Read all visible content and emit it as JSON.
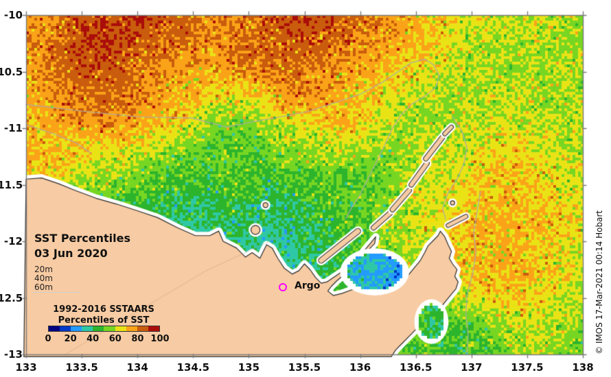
{
  "map": {
    "title_line1": "SST Percentiles",
    "title_line2": "03 Jun 2020",
    "argo_label": "Argo",
    "argo_marker_color": "#FF00FF",
    "copyright": "© IMOS 17-Mar-2021 00:14 Hobart",
    "land_color": "#F7CBA3",
    "coast_outline_color": "#2B2B2B",
    "coast_halo_color": "#FFFFFF",
    "contour_color": "#ABABAB",
    "axis_color": "#7A7A7A",
    "background": "#FFFFFF"
  },
  "legend": {
    "depth_items": [
      "20m",
      "40m",
      "60m"
    ],
    "title_line1": "1992-2016 SSTAARS",
    "title_line2": "Percentiles of SST",
    "ticks": [
      "0",
      "20",
      "40",
      "60",
      "80",
      "100"
    ],
    "palette": [
      "#000082",
      "#0038C8",
      "#239BFF",
      "#2EC8A6",
      "#2DB42D",
      "#77D622",
      "#E9E316",
      "#FBA318",
      "#C95C0D",
      "#AB0D0A"
    ]
  },
  "axes": {
    "x_ticks": [
      "133",
      "133.5",
      "134",
      "134.5",
      "135",
      "135.5",
      "136",
      "136.5",
      "137",
      "137.5",
      "138"
    ],
    "y_ticks": [
      "-10",
      "-10.5",
      "-11",
      "-11.5",
      "-12",
      "-12.5",
      "-13"
    ]
  },
  "chart_data": {
    "type": "heatmap",
    "title": "SST Percentiles 03 Jun 2020",
    "subtitle": "1992-2016 SSTAARS Percentiles of SST",
    "lon_range": [
      133,
      138
    ],
    "lat_range": [
      -13,
      -10
    ],
    "colorbar": {
      "label": "Percentiles of SST",
      "range": [
        0,
        100
      ],
      "tick_values": [
        0,
        20,
        40,
        60,
        80,
        100
      ],
      "n_bins": 10
    },
    "argo": {
      "lon": 135.3,
      "lat": -12.4
    },
    "grid": {
      "nx": 22,
      "ny": 14,
      "comment": "SST percentile field (0-100), row 0 = lat -10 (top), col 0 = lon 133 (west)",
      "values": [
        [
          76,
          80,
          86,
          88,
          90,
          86,
          82,
          78,
          80,
          84,
          88,
          88,
          84,
          80,
          76,
          72,
          66,
          62,
          60,
          62,
          60,
          58
        ],
        [
          76,
          82,
          88,
          90,
          86,
          84,
          80,
          78,
          80,
          84,
          86,
          84,
          82,
          78,
          74,
          70,
          64,
          60,
          58,
          60,
          58,
          56
        ],
        [
          74,
          82,
          88,
          86,
          82,
          78,
          76,
          74,
          78,
          82,
          84,
          80,
          76,
          74,
          70,
          66,
          62,
          58,
          56,
          58,
          60,
          58
        ],
        [
          72,
          76,
          82,
          84,
          80,
          76,
          72,
          66,
          64,
          72,
          78,
          76,
          72,
          68,
          64,
          60,
          58,
          60,
          62,
          60,
          58,
          60
        ],
        [
          70,
          74,
          76,
          78,
          76,
          72,
          66,
          58,
          54,
          58,
          64,
          68,
          72,
          66,
          60,
          58,
          56,
          60,
          63,
          61,
          59,
          62
        ],
        [
          71,
          72,
          70,
          68,
          66,
          62,
          56,
          52,
          50,
          54,
          58,
          60,
          62,
          58,
          56,
          60,
          62,
          64,
          67,
          64,
          61,
          60
        ],
        [
          72,
          68,
          62,
          58,
          55,
          52,
          48,
          50,
          52,
          48,
          50,
          52,
          50,
          52,
          56,
          60,
          64,
          68,
          70,
          68,
          64,
          62
        ],
        [
          70,
          64,
          58,
          52,
          48,
          45,
          42,
          44,
          46,
          42,
          44,
          48,
          50,
          52,
          58,
          62,
          66,
          70,
          72,
          70,
          66,
          64
        ],
        [
          66,
          60,
          54,
          48,
          42,
          38,
          36,
          40,
          42,
          38,
          40,
          44,
          48,
          54,
          60,
          64,
          68,
          72,
          74,
          72,
          68,
          64
        ],
        [
          64,
          58,
          52,
          46,
          40,
          36,
          34,
          36,
          38,
          35,
          38,
          42,
          46,
          52,
          58,
          62,
          66,
          71,
          73,
          71,
          66,
          62
        ],
        [
          62,
          56,
          50,
          44,
          40,
          36,
          34,
          36,
          38,
          36,
          38,
          42,
          46,
          52,
          56,
          60,
          68,
          70,
          72,
          72,
          66,
          62
        ],
        [
          60,
          55,
          50,
          45,
          42,
          40,
          38,
          40,
          42,
          40,
          42,
          44,
          46,
          50,
          54,
          56,
          58,
          62,
          68,
          68,
          62,
          58
        ],
        [
          58,
          54,
          50,
          46,
          44,
          42,
          40,
          42,
          44,
          42,
          44,
          46,
          46,
          48,
          52,
          52,
          48,
          50,
          56,
          62,
          58,
          55
        ],
        [
          58,
          54,
          50,
          46,
          44,
          42,
          40,
          42,
          44,
          42,
          44,
          46,
          46,
          48,
          50,
          50,
          46,
          50,
          55,
          60,
          55,
          52
        ]
      ]
    },
    "coastline": [
      [
        133.0,
        -11.45
      ],
      [
        133.14,
        -11.44
      ],
      [
        133.29,
        -11.49
      ],
      [
        133.44,
        -11.55
      ],
      [
        133.63,
        -11.62
      ],
      [
        133.81,
        -11.67
      ],
      [
        134.0,
        -11.73
      ],
      [
        134.18,
        -11.79
      ],
      [
        134.36,
        -11.88
      ],
      [
        134.52,
        -11.95
      ],
      [
        134.65,
        -11.95
      ],
      [
        134.73,
        -11.91
      ],
      [
        134.77,
        -12.0
      ],
      [
        134.89,
        -12.06
      ],
      [
        134.97,
        -12.14
      ],
      [
        135.03,
        -12.1
      ],
      [
        135.1,
        -12.15
      ],
      [
        135.16,
        -12.03
      ],
      [
        135.21,
        -12.06
      ],
      [
        135.26,
        -12.15
      ],
      [
        135.32,
        -12.24
      ],
      [
        135.39,
        -12.29
      ],
      [
        135.45,
        -12.26
      ],
      [
        135.5,
        -12.2
      ],
      [
        135.55,
        -12.25
      ],
      [
        135.6,
        -12.32
      ],
      [
        135.65,
        -12.37
      ],
      [
        135.7,
        -12.36
      ],
      [
        135.79,
        -12.3
      ],
      [
        135.88,
        -12.24
      ],
      [
        135.96,
        -12.17
      ],
      [
        136.03,
        -12.09
      ],
      [
        136.09,
        -12.02
      ],
      [
        136.14,
        -11.96
      ],
      [
        136.13,
        -12.02
      ],
      [
        136.06,
        -12.09
      ],
      [
        136.0,
        -12.17
      ],
      [
        135.92,
        -12.24
      ],
      [
        135.85,
        -12.3
      ],
      [
        135.79,
        -12.35
      ],
      [
        135.74,
        -12.4
      ],
      [
        135.71,
        -12.44
      ],
      [
        135.76,
        -12.48
      ],
      [
        135.84,
        -12.46
      ],
      [
        135.92,
        -12.43
      ],
      [
        136.01,
        -12.42
      ],
      [
        136.09,
        -12.43
      ],
      [
        136.18,
        -12.46
      ],
      [
        136.26,
        -12.44
      ],
      [
        136.33,
        -12.41
      ],
      [
        136.39,
        -12.35
      ],
      [
        136.44,
        -12.29
      ],
      [
        136.49,
        -12.23
      ],
      [
        136.54,
        -12.17
      ],
      [
        136.58,
        -12.1
      ],
      [
        136.61,
        -12.04
      ],
      [
        136.65,
        -12.0
      ],
      [
        136.7,
        -11.95
      ],
      [
        136.72,
        -11.91
      ],
      [
        136.76,
        -11.96
      ],
      [
        136.79,
        -12.03
      ],
      [
        136.82,
        -12.09
      ],
      [
        136.8,
        -12.15
      ],
      [
        136.83,
        -12.2
      ],
      [
        136.87,
        -12.25
      ],
      [
        136.85,
        -12.31
      ],
      [
        136.88,
        -12.36
      ],
      [
        136.86,
        -12.42
      ],
      [
        136.81,
        -12.48
      ],
      [
        136.76,
        -12.54
      ],
      [
        136.71,
        -12.6
      ],
      [
        136.65,
        -12.66
      ],
      [
        136.58,
        -12.72
      ],
      [
        136.5,
        -12.78
      ],
      [
        136.44,
        -12.84
      ],
      [
        136.38,
        -12.9
      ],
      [
        136.32,
        -12.96
      ],
      [
        136.28,
        -13.02
      ],
      [
        132.98,
        -13.02
      ]
    ],
    "island_chains": [
      {
        "from": [
          136.12,
          -11.88
        ],
        "to": [
          136.27,
          -11.75
        ],
        "w": 6
      },
      {
        "from": [
          136.29,
          -11.72
        ],
        "to": [
          136.44,
          -11.55
        ],
        "w": 6
      },
      {
        "from": [
          136.46,
          -11.5
        ],
        "to": [
          136.6,
          -11.31
        ],
        "w": 6
      },
      {
        "from": [
          136.59,
          -11.27
        ],
        "to": [
          136.74,
          -11.08
        ],
        "w": 6
      },
      {
        "from": [
          136.76,
          -11.05
        ],
        "to": [
          136.82,
          -10.99
        ],
        "w": 5
      },
      {
        "from": [
          136.79,
          -11.86
        ],
        "to": [
          136.95,
          -11.78
        ],
        "w": 5
      },
      {
        "from": [
          135.65,
          -12.17
        ],
        "to": [
          135.98,
          -11.91
        ],
        "w": 7
      }
    ],
    "small_islands": [
      {
        "lon": 135.06,
        "lat": -11.9,
        "r": 6
      },
      {
        "lon": 135.15,
        "lat": -11.68,
        "r": 3
      },
      {
        "lon": 136.83,
        "lat": -11.66,
        "r": 2.5
      }
    ],
    "bays": [
      {
        "lon": 136.13,
        "lat": -12.27,
        "rx": 0.26,
        "ry": 0.17,
        "base": 30
      },
      {
        "lon": 136.64,
        "lat": -12.71,
        "rx": 0.12,
        "ry": 0.16,
        "base": 44
      }
    ],
    "depth_contours": [
      [
        [
          133.0,
          -10.79
        ],
        [
          133.51,
          -10.85
        ],
        [
          134.0,
          -10.9
        ],
        [
          134.49,
          -10.91
        ],
        [
          134.8,
          -10.99
        ],
        [
          135.05,
          -10.94
        ],
        [
          135.29,
          -10.9
        ],
        [
          135.54,
          -10.85
        ],
        [
          135.79,
          -10.77
        ],
        [
          136.0,
          -10.7
        ],
        [
          136.19,
          -10.6
        ],
        [
          136.34,
          -10.5
        ],
        [
          136.46,
          -10.42
        ],
        [
          136.58,
          -10.39
        ],
        [
          136.66,
          -10.44
        ],
        [
          136.71,
          -10.53
        ],
        [
          136.68,
          -10.64
        ],
        [
          136.59,
          -10.71
        ],
        [
          136.46,
          -10.79
        ],
        [
          136.37,
          -10.88
        ],
        [
          136.29,
          -11.0
        ],
        [
          136.22,
          -11.15
        ],
        [
          136.14,
          -11.31
        ],
        [
          136.07,
          -11.45
        ],
        [
          136.0,
          -11.59
        ],
        [
          135.92,
          -11.71
        ],
        [
          135.87,
          -11.8
        ]
      ],
      [
        [
          136.83,
          -10.9
        ],
        [
          136.91,
          -11.02
        ],
        [
          136.96,
          -11.17
        ],
        [
          136.93,
          -11.32
        ],
        [
          136.87,
          -11.45
        ],
        [
          136.79,
          -11.57
        ],
        [
          136.74,
          -11.71
        ],
        [
          136.77,
          -11.81
        ]
      ],
      [
        [
          137.08,
          -11.56
        ],
        [
          137.05,
          -11.74
        ],
        [
          137.02,
          -11.92
        ],
        [
          137.04,
          -12.1
        ],
        [
          137.01,
          -12.29
        ],
        [
          136.96,
          -12.47
        ],
        [
          136.95,
          -12.65
        ],
        [
          136.97,
          -12.83
        ],
        [
          136.96,
          -12.99
        ]
      ],
      [
        [
          133.0,
          -10.97
        ],
        [
          133.25,
          -11.05
        ],
        [
          133.45,
          -11.13
        ],
        [
          133.58,
          -11.22
        ]
      ]
    ]
  }
}
